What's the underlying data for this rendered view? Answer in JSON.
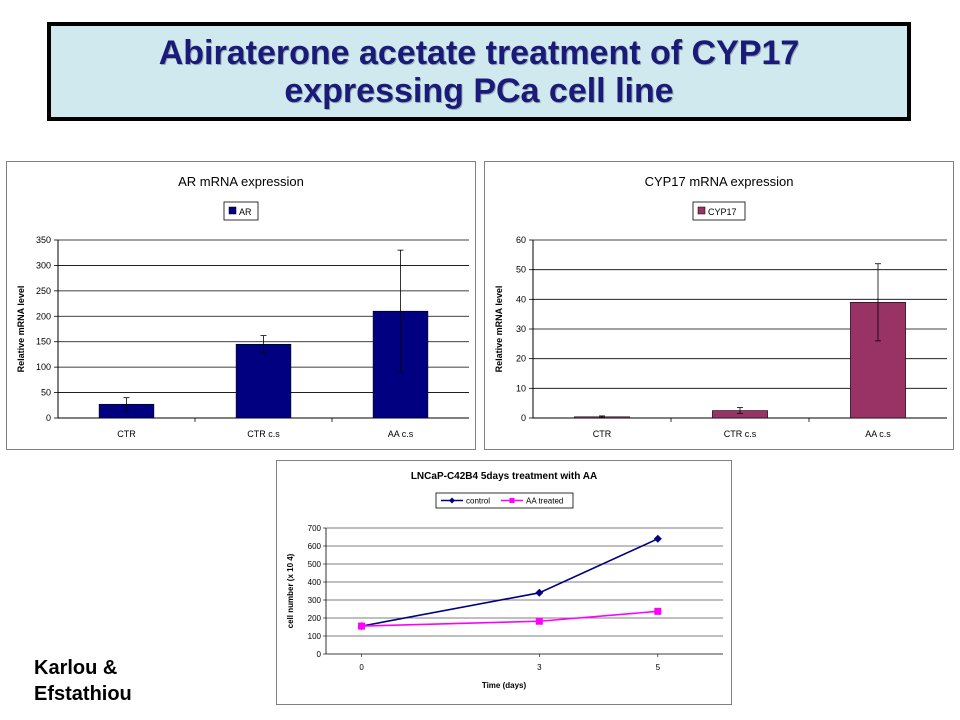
{
  "slide": {
    "title_line1": "Abiraterone acetate treatment of CYP17",
    "title_line2": "expressing PCa cell line",
    "author_line1": "Karlou &",
    "author_line2": "Efstathiou"
  },
  "colors": {
    "title_bg": "#cfe9ee",
    "title_text": "#1a1a7a",
    "ar_bar": "#000080",
    "cyp17_bar": "#993366",
    "control_line": "#000080",
    "aa_line": "#ff00ff"
  },
  "chart_data": [
    {
      "type": "bar",
      "title": "AR mRNA expression",
      "ylabel": "Relative mRNA level",
      "xlabel": "",
      "categories": [
        "CTR",
        "CTR c.s",
        "AA c.s"
      ],
      "series": [
        {
          "name": "AR",
          "values": [
            27,
            145,
            210
          ],
          "errors": [
            13,
            17,
            120
          ],
          "color": "#000080"
        }
      ],
      "ylim": [
        0,
        350
      ],
      "yticks": [
        0,
        50,
        100,
        150,
        200,
        250,
        300,
        350
      ],
      "legend": "top",
      "grid": true
    },
    {
      "type": "bar",
      "title": "CYP17 mRNA expression",
      "ylabel": "Relative mRNA level",
      "xlabel": "",
      "categories": [
        "CTR",
        "CTR c.s",
        "AA c.s"
      ],
      "series": [
        {
          "name": "CYP17",
          "values": [
            0.4,
            2.5,
            39
          ],
          "errors": [
            0.3,
            1,
            13
          ],
          "color": "#993366"
        }
      ],
      "ylim": [
        0,
        60
      ],
      "yticks": [
        0,
        10,
        20,
        30,
        40,
        50,
        60
      ],
      "legend": "top",
      "grid": true
    },
    {
      "type": "line",
      "title": "LNCaP-C42B4 5days treatment with AA",
      "ylabel": "cell number (x 10 4)",
      "xlabel": "Time (days)",
      "x": [
        "0",
        "3",
        "5"
      ],
      "series": [
        {
          "name": "control",
          "values": [
            155,
            340,
            640
          ],
          "color": "#000080",
          "marker": "diamond"
        },
        {
          "name": "AA treated",
          "values": [
            155,
            182,
            237
          ],
          "color": "#ff00ff",
          "marker": "square"
        }
      ],
      "ylim": [
        0,
        700
      ],
      "yticks": [
        0,
        100,
        200,
        300,
        400,
        500,
        600,
        700
      ],
      "legend": "top",
      "grid": true
    }
  ]
}
